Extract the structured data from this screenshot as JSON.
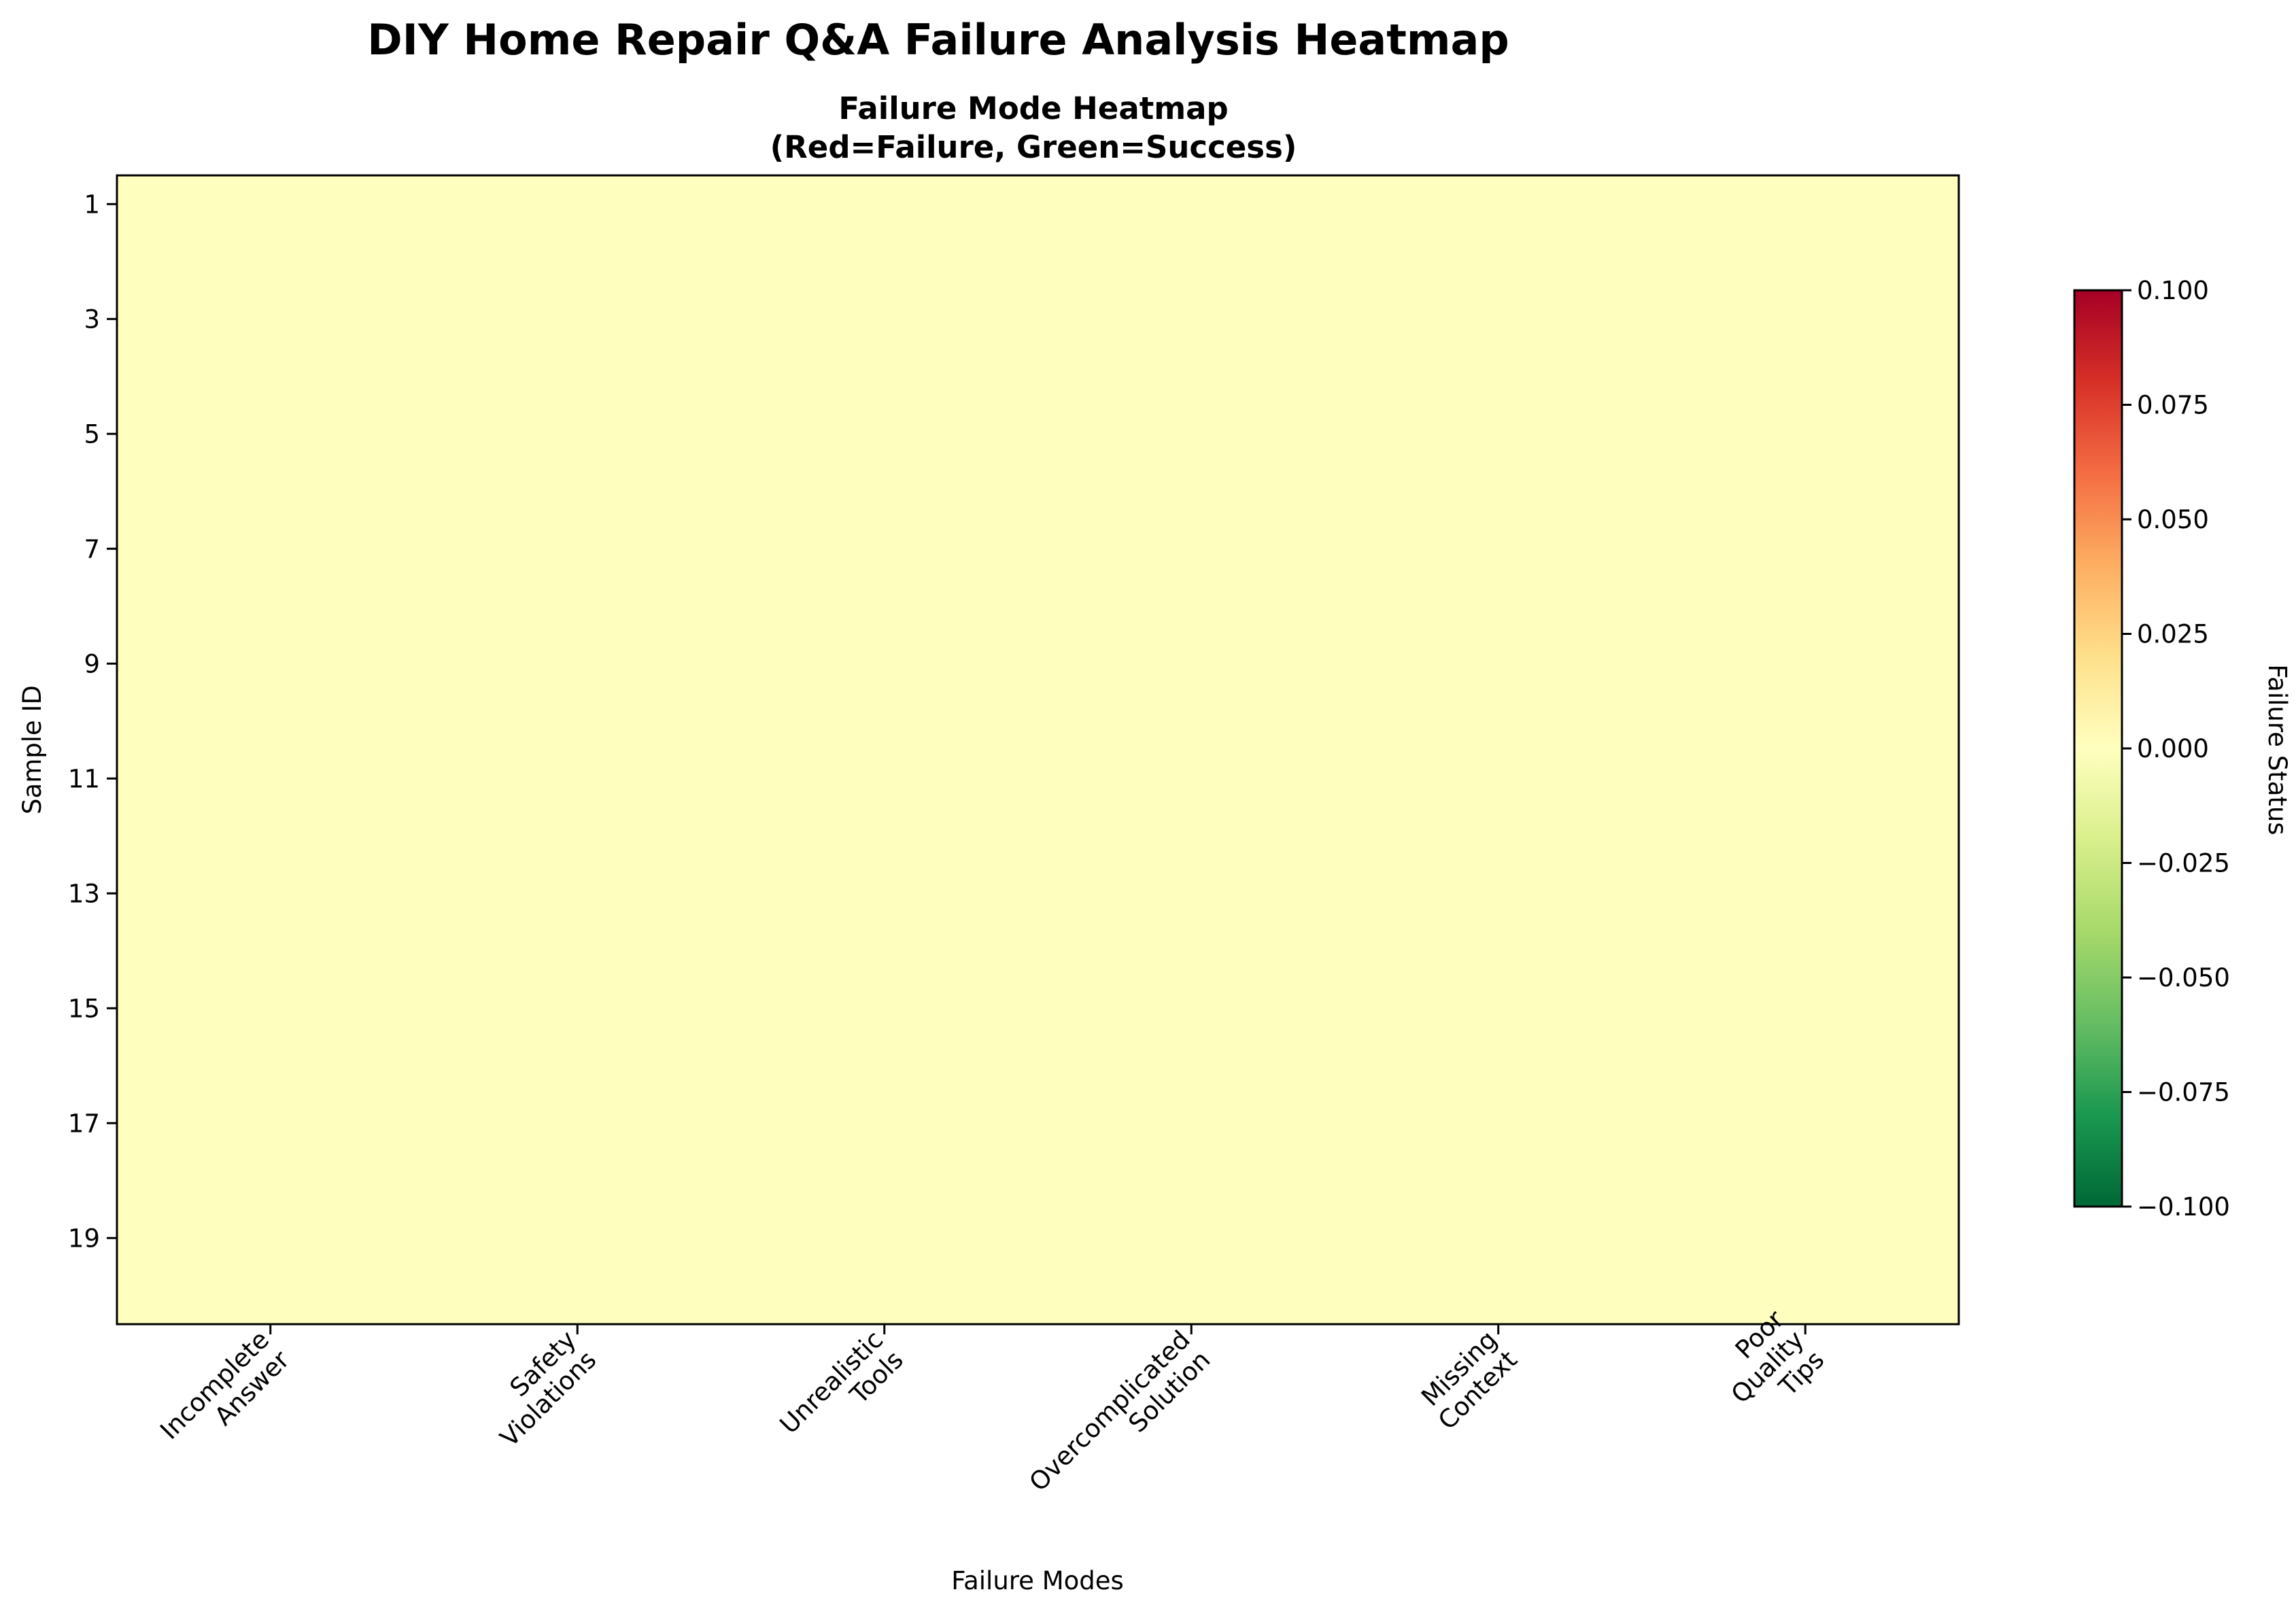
{
  "figure_title": "DIY Home Repair Q&A Failure Analysis Heatmap",
  "chart_data": {
    "type": "heatmap",
    "title_line1": "Failure Mode Heatmap",
    "title_line2": "(Red=Failure, Green=Success)",
    "xlabel": "Failure Modes",
    "ylabel": "Sample ID",
    "x_categories": [
      [
        "Incomplete",
        "Answer"
      ],
      [
        "Safety",
        "Violations"
      ],
      [
        "Unrealistic",
        "Tools"
      ],
      [
        "Overcomplicated",
        "Solution"
      ],
      [
        "Missing",
        "Context"
      ],
      [
        "Poor",
        "Quality",
        "Tips"
      ]
    ],
    "rows": 20,
    "y_tick_labels": [
      "1",
      "3",
      "5",
      "7",
      "9",
      "11",
      "13",
      "15",
      "17",
      "19"
    ],
    "values_all": 0,
    "colormap": "RdYlGn_r",
    "cell_color": "#feffbe",
    "colorbar": {
      "label": "Failure Status",
      "range": [
        -0.1,
        0.1
      ],
      "tick_labels": [
        "−0.100",
        "−0.075",
        "−0.050",
        "−0.025",
        "0.000",
        "0.025",
        "0.050",
        "0.075",
        "0.100"
      ],
      "tick_values": [
        -0.1,
        -0.075,
        -0.05,
        -0.025,
        0.0,
        0.025,
        0.05,
        0.075,
        0.1
      ],
      "gradient_colors": [
        "#006837",
        "#1a9850",
        "#66bd63",
        "#a6d96a",
        "#d9ef8b",
        "#ffffbf",
        "#fee08b",
        "#fdae61",
        "#f46d43",
        "#d73027",
        "#a50026"
      ]
    }
  }
}
